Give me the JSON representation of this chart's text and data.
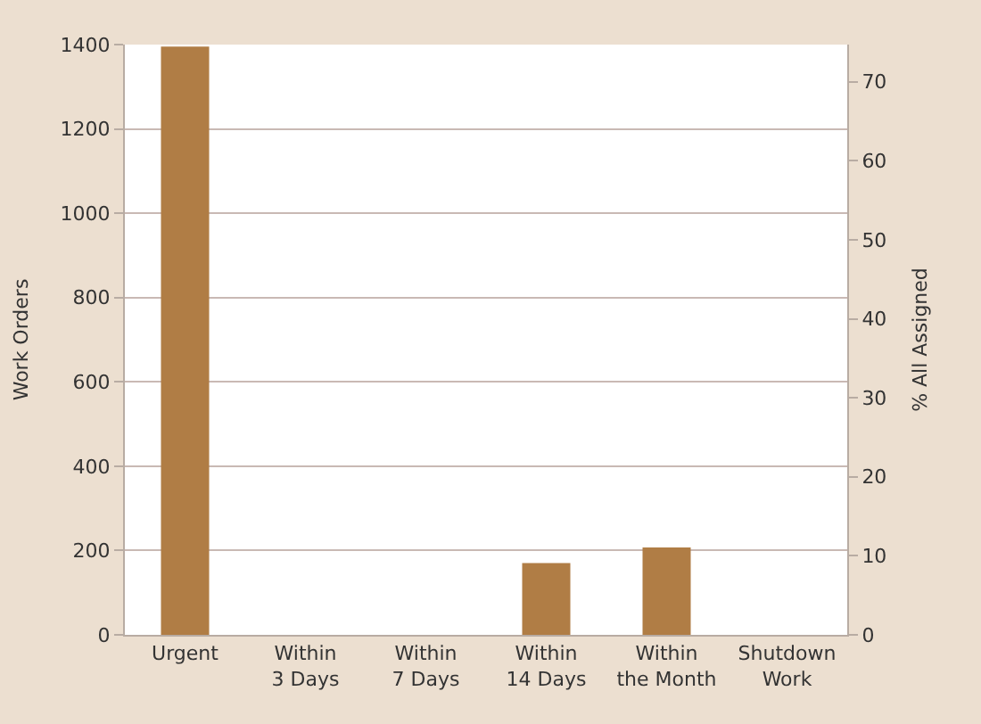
{
  "chart_data": {
    "type": "bar",
    "ylabel": "Work Orders",
    "y2label": "% All Assigned",
    "categories": [
      "Urgent",
      "Within\n3 Days",
      "Within\n7 Days",
      "Within\n14 Days",
      "Within\nthe Month",
      "Shutdown\nWork"
    ],
    "series": [
      {
        "color": "#b07d45",
        "values": [
          1395,
          null,
          null,
          170,
          207,
          null
        ]
      }
    ],
    "ylim": [
      0,
      1400
    ],
    "yticks": [
      0,
      200,
      400,
      600,
      800,
      1000,
      1200,
      1400
    ],
    "y2lim": [
      0,
      74.7
    ],
    "y2ticks": [
      0,
      10,
      20,
      30,
      40,
      50,
      60,
      70
    ],
    "grid": "y"
  }
}
